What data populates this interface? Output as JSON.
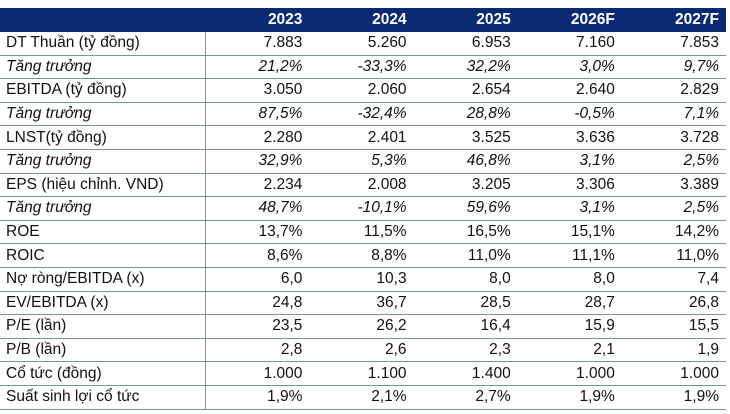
{
  "header": {
    "label": "",
    "years": [
      "2023",
      "2024",
      "2025",
      "2026F",
      "2027F"
    ]
  },
  "rows": [
    {
      "label": "DT Thuần (tỷ đồng)",
      "values": [
        "7.883",
        "5.260",
        "6.953",
        "7.160",
        "7.853"
      ],
      "italic": false
    },
    {
      "label": "Tăng trưởng",
      "values": [
        "21,2%",
        "-33,3%",
        "32,2%",
        "3,0%",
        "9,7%"
      ],
      "italic": true
    },
    {
      "label": "EBITDA (tỷ đồng)",
      "values": [
        "3.050",
        "2.060",
        "2.654",
        "2.640",
        "2.829"
      ],
      "italic": false
    },
    {
      "label": "Tăng trưởng",
      "values": [
        "87,5%",
        "-32,4%",
        "28,8%",
        "-0,5%",
        "7,1%"
      ],
      "italic": true
    },
    {
      "label": "LNST(tỷ đồng)",
      "values": [
        "2.280",
        "2.401",
        "3.525",
        "3.636",
        "3.728"
      ],
      "italic": false
    },
    {
      "label": "Tăng trưởng",
      "values": [
        "32,9%",
        "5,3%",
        "46,8%",
        "3,1%",
        "2,5%"
      ],
      "italic": true
    },
    {
      "label": "EPS (hiệu chỉnh. VND)",
      "values": [
        "2.234",
        "2.008",
        "3.205",
        "3.306",
        "3.389"
      ],
      "italic": false
    },
    {
      "label": "Tăng trưởng",
      "values": [
        "48,7%",
        "-10,1%",
        "59,6%",
        "3,1%",
        "2,5%"
      ],
      "italic": true
    },
    {
      "label": "ROE",
      "values": [
        "13,7%",
        "11,5%",
        "16,5%",
        "15,1%",
        "14,2%"
      ],
      "italic": false
    },
    {
      "label": "ROIC",
      "values": [
        "8,6%",
        "8,8%",
        "11,0%",
        "11,1%",
        "11,0%"
      ],
      "italic": false
    },
    {
      "label": "Nợ ròng/EBITDA (x)",
      "values": [
        "6,0",
        "10,3",
        "8,0",
        "8,0",
        "7,4"
      ],
      "italic": false
    },
    {
      "label": "EV/EBITDA (x)",
      "values": [
        "24,8",
        "36,7",
        "28,5",
        "28,7",
        "26,8"
      ],
      "italic": false
    },
    {
      "label": "P/E (lần)",
      "values": [
        "23,5",
        "26,2",
        "16,4",
        "15,9",
        "15,5"
      ],
      "italic": false
    },
    {
      "label": "P/B (lần)",
      "values": [
        "2,8",
        "2,6",
        "2,3",
        "2,1",
        "1,9"
      ],
      "italic": false
    },
    {
      "label": "Cổ tức (đồng)",
      "values": [
        "1.000",
        "1.100",
        "1.400",
        "1.000",
        "1.000"
      ],
      "italic": false
    },
    {
      "label": "Suất sinh lợi cổ tức",
      "values": [
        "1,9%",
        "2,1%",
        "2,7%",
        "1,9%",
        "1,9%"
      ],
      "italic": false
    }
  ],
  "colors": {
    "header_bg": "#0a2a73",
    "header_text": "#ffffff",
    "grid_line": "#7a8fb5"
  }
}
